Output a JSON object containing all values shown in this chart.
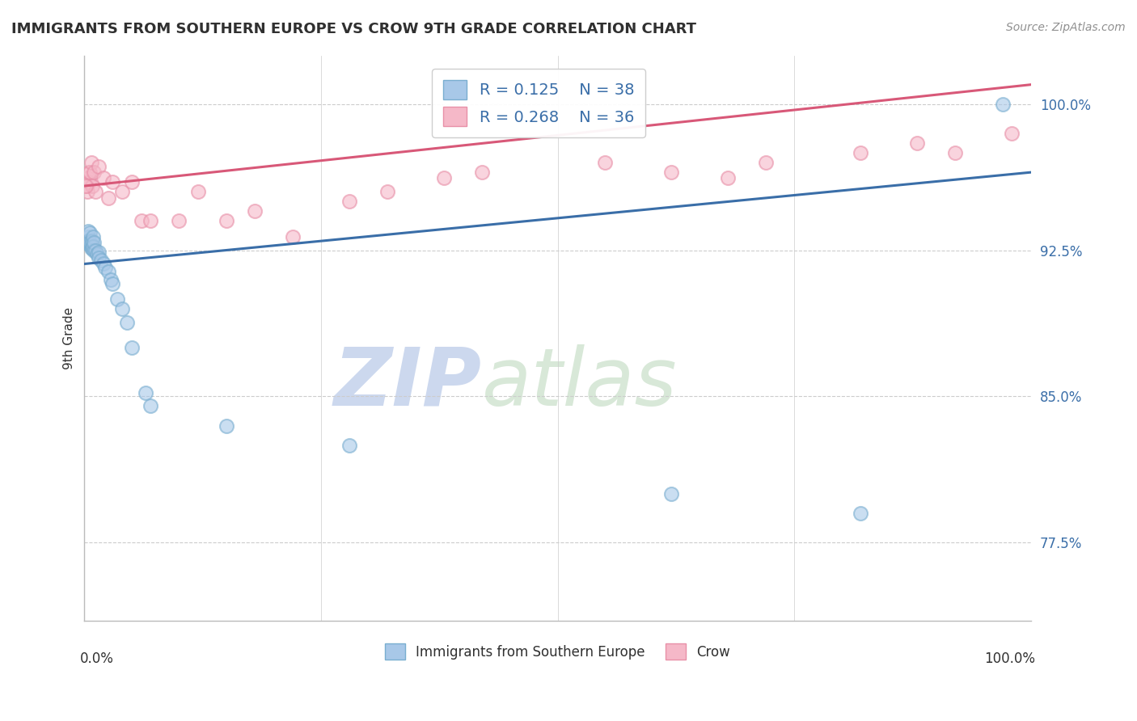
{
  "title": "IMMIGRANTS FROM SOUTHERN EUROPE VS CROW 9TH GRADE CORRELATION CHART",
  "source": "Source: ZipAtlas.com",
  "ylabel": "9th Grade",
  "y_ticks": [
    77.5,
    85.0,
    92.5,
    100.0
  ],
  "x_ticks": [
    0.0,
    0.25,
    0.5,
    0.75,
    1.0
  ],
  "legend_r1": "R = 0.125",
  "legend_n1": "N = 38",
  "legend_r2": "R = 0.268",
  "legend_n2": "N = 36",
  "blue_color": "#a8c8e8",
  "blue_edge_color": "#7aaed0",
  "pink_color": "#f5b8c8",
  "pink_edge_color": "#e890a8",
  "blue_line_color": "#3a6ea8",
  "pink_line_color": "#d85878",
  "legend_text_color": "#3a6ea8",
  "tick_color": "#3a6ea8",
  "title_color": "#303030",
  "source_color": "#909090",
  "watermark_color": "#ccd8ee",
  "grid_color": "#cccccc",
  "blue_scatter_x": [
    0.003,
    0.004,
    0.004,
    0.005,
    0.005,
    0.005,
    0.006,
    0.006,
    0.006,
    0.007,
    0.007,
    0.008,
    0.008,
    0.009,
    0.009,
    0.01,
    0.01,
    0.012,
    0.013,
    0.015,
    0.015,
    0.018,
    0.02,
    0.022,
    0.025,
    0.028,
    0.03,
    0.035,
    0.04,
    0.045,
    0.05,
    0.065,
    0.07,
    0.15,
    0.28,
    0.62,
    0.82,
    0.97
  ],
  "blue_scatter_y": [
    93.0,
    93.2,
    93.5,
    93.0,
    92.8,
    93.0,
    93.4,
    92.8,
    92.9,
    92.6,
    92.8,
    92.6,
    93.0,
    93.2,
    92.7,
    92.5,
    92.9,
    92.5,
    92.3,
    92.4,
    92.1,
    92.0,
    91.8,
    91.6,
    91.4,
    91.0,
    90.8,
    90.0,
    89.5,
    88.8,
    87.5,
    85.2,
    84.5,
    83.5,
    82.5,
    80.0,
    79.0,
    100.0
  ],
  "pink_scatter_x": [
    0.002,
    0.003,
    0.004,
    0.005,
    0.005,
    0.006,
    0.007,
    0.008,
    0.01,
    0.012,
    0.015,
    0.02,
    0.025,
    0.03,
    0.04,
    0.05,
    0.06,
    0.07,
    0.1,
    0.12,
    0.15,
    0.18,
    0.22,
    0.28,
    0.32,
    0.38,
    0.42,
    0.55,
    0.62,
    0.68,
    0.72,
    0.82,
    0.88,
    0.92,
    0.98,
    0.001
  ],
  "pink_scatter_y": [
    95.8,
    95.5,
    96.2,
    96.0,
    96.5,
    96.5,
    97.0,
    95.8,
    96.5,
    95.5,
    96.8,
    96.2,
    95.2,
    96.0,
    95.5,
    96.0,
    94.0,
    94.0,
    94.0,
    95.5,
    94.0,
    94.5,
    93.2,
    95.0,
    95.5,
    96.2,
    96.5,
    97.0,
    96.5,
    96.2,
    97.0,
    97.5,
    98.0,
    97.5,
    98.5,
    95.8
  ],
  "blue_trend_x": [
    0.0,
    1.0
  ],
  "blue_trend_y": [
    91.8,
    96.5
  ],
  "pink_trend_x": [
    0.0,
    1.0
  ],
  "pink_trend_y": [
    95.8,
    101.0
  ],
  "xlim": [
    0.0,
    1.0
  ],
  "ylim": [
    73.5,
    102.5
  ]
}
